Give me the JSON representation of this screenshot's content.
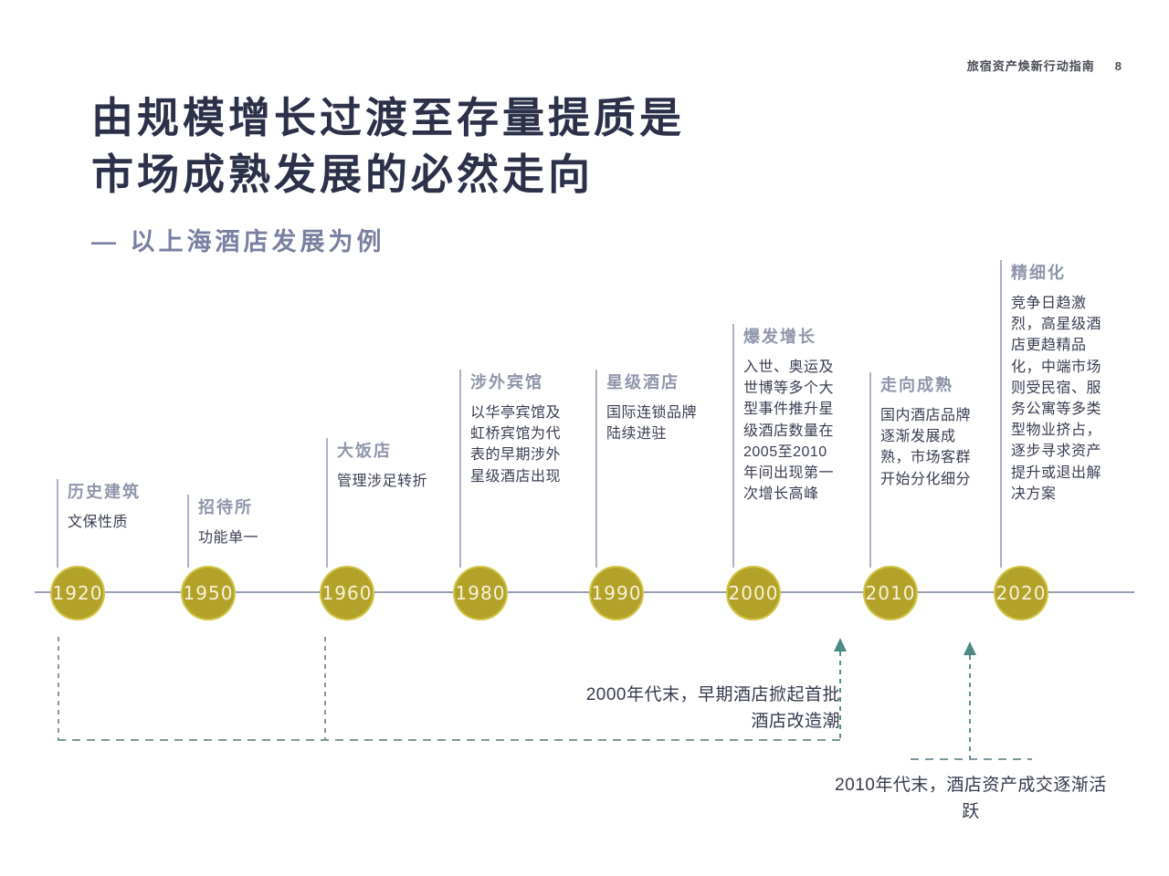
{
  "page": {
    "header": "旅宿资产焕新行动指南",
    "page_number": "8"
  },
  "title": {
    "line1": "由规模增长过渡至存量提质是",
    "line2": "市场成熟发展的必然走向",
    "subtitle": "— 以上海酒店发展为例"
  },
  "timeline": {
    "milestones": [
      {
        "year": "1920",
        "label": "历史建筑",
        "desc": "文保性质"
      },
      {
        "year": "1950",
        "label": "招待所",
        "desc": "功能单一"
      },
      {
        "year": "1960",
        "label": "大饭店",
        "desc": "管理涉足转折"
      },
      {
        "year": "1980",
        "label": "涉外宾馆",
        "desc": "以华亭宾馆及虹桥宾馆为代表的早期涉外星级酒店出现"
      },
      {
        "year": "1990",
        "label": "星级酒店",
        "desc": "国际连锁品牌陆续进驻"
      },
      {
        "year": "2000",
        "label": "爆发增长",
        "desc": "入世、奥运及世博等多个大型事件推升星级酒店数量在2005至2010年间出现第一次增长高峰"
      },
      {
        "year": "2010",
        "label": "走向成熟",
        "desc": "国内酒店品牌逐渐发展成熟，市场客群开始分化细分"
      },
      {
        "year": "2020",
        "label": "精细化",
        "desc": "竞争日趋激烈，高星级酒店更趋精品化，中端市场则受民宿、服务公寓等多类型物业挤占，逐步寻求资产提升或退出解决方案"
      }
    ]
  },
  "annotations": [
    {
      "text": "2000年代末，早期酒店掀起首批酒店改造潮"
    },
    {
      "text": "2010年代末，酒店资产成交逐渐活跃"
    }
  ],
  "colors": {
    "title_navy": "#2c3149",
    "subtitle_slate": "#7a80a0",
    "label_grey": "#9096ab",
    "body_dark": "#3a3e52",
    "timeline_line": "#97a0b3",
    "circle_gold": "#b3a22a",
    "circle_rim": "#d2c548",
    "circle_text": "#f6f2da",
    "dash_teal": "#7e979b",
    "arrow_teal": "#4d8a85"
  }
}
